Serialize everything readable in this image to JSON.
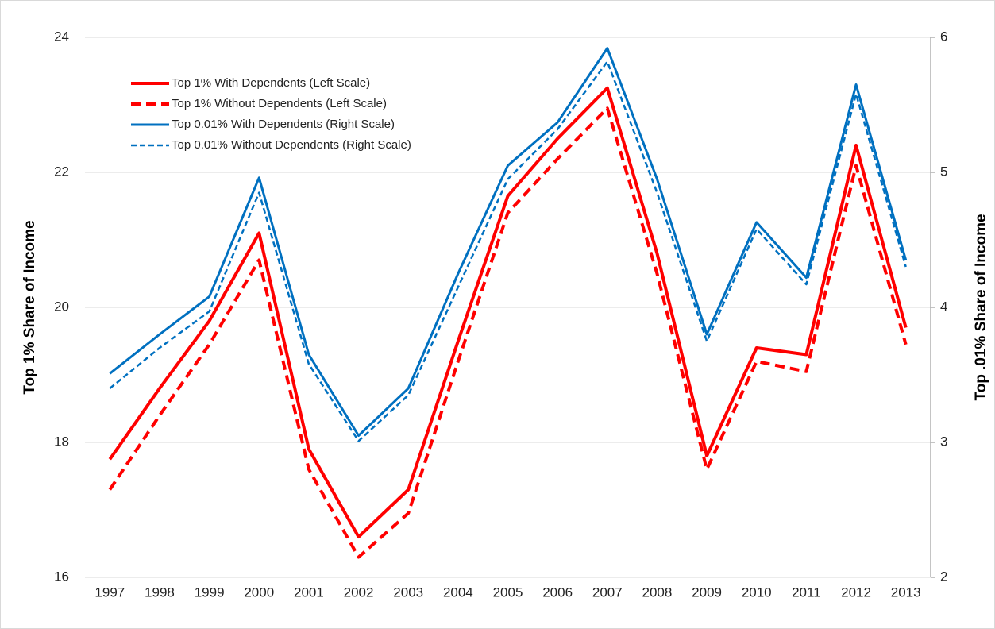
{
  "chart_data": {
    "type": "line",
    "y_label": "Top 1%  Share of Income",
    "y2_label": "Top .01%  Share of Income",
    "categories": [
      "1997",
      "1998",
      "1999",
      "2000",
      "2001",
      "2002",
      "2003",
      "2004",
      "2005",
      "2006",
      "2007",
      "2008",
      "2009",
      "2010",
      "2011",
      "2012",
      "2013"
    ],
    "series": [
      {
        "name": "Top 1% With Dependents (Left Scale)",
        "color": "#ff0000",
        "dashed": false,
        "width": 4,
        "values": [
          17.75,
          18.8,
          19.8,
          21.1,
          17.9,
          16.6,
          17.3,
          19.5,
          21.65,
          22.5,
          23.25,
          20.8,
          17.8,
          19.4,
          19.3,
          22.4,
          19.7
        ]
      },
      {
        "name": "Top 1% Without Dependents (Left Scale)",
        "color": "#ff0000",
        "dashed": true,
        "width": 4,
        "values": [
          17.3,
          18.4,
          19.45,
          20.7,
          17.6,
          16.3,
          16.95,
          19.2,
          21.4,
          22.2,
          22.95,
          20.5,
          17.6,
          19.2,
          19.05,
          22.1,
          19.45
        ]
      },
      {
        "name": "Top 0.01% With Dependents (Right Scale)",
        "color": "#0070c0",
        "dashed": false,
        "width": 3,
        "axis": "y2",
        "values": [
          3.51,
          3.8,
          4.08,
          4.96,
          3.65,
          3.05,
          3.4,
          4.25,
          5.05,
          5.37,
          5.92,
          4.95,
          3.8,
          4.63,
          4.22,
          5.65,
          4.35
        ]
      },
      {
        "name": "Top 0.01% Without Dependents (Right Scale)",
        "color": "#0070c0",
        "dashed": true,
        "width": 2.5,
        "axis": "y2",
        "values": [
          3.4,
          3.7,
          3.97,
          4.85,
          3.58,
          3.01,
          3.35,
          4.15,
          4.95,
          5.32,
          5.82,
          4.85,
          3.75,
          4.58,
          4.17,
          5.58,
          4.3
        ]
      }
    ],
    "ylim": [
      16,
      24
    ],
    "yticks": [
      16,
      18,
      20,
      22,
      24
    ],
    "y2lim": [
      2,
      6
    ],
    "y2ticks": [
      2,
      3,
      4,
      5,
      6
    ],
    "grid": true,
    "legend": "upper left"
  }
}
